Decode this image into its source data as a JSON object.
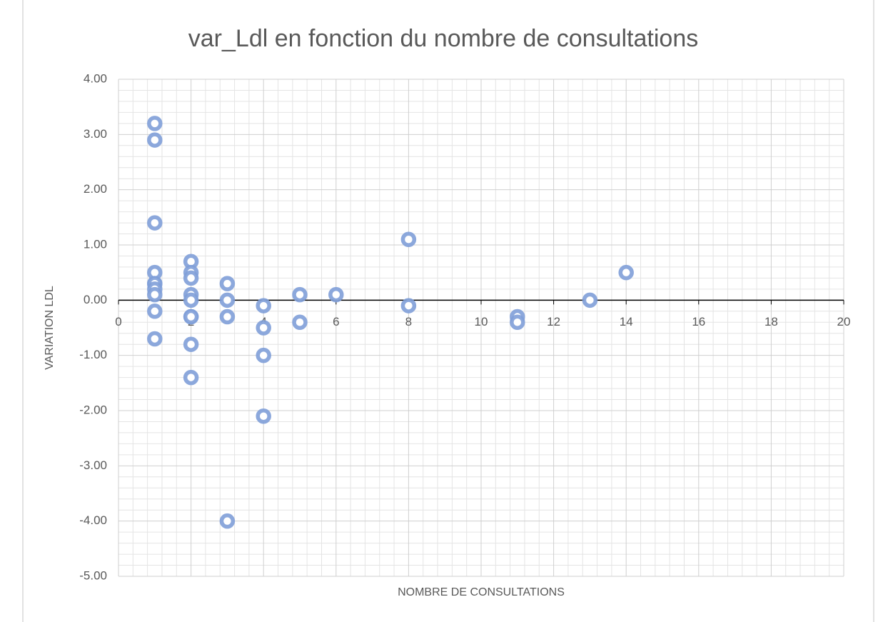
{
  "chart_data": {
    "type": "scatter",
    "title": "var_Ldl en fonction du nombre de consultations",
    "x_label": "NOMBRE DE CONSULTATIONS",
    "y_label": "VARIATION LDL",
    "series": [
      {
        "color": "#7f9ed8",
        "x": [
          1,
          1,
          1,
          1,
          1,
          1,
          1,
          1,
          1,
          1,
          2,
          2,
          2,
          2,
          2,
          2,
          2,
          2,
          2,
          3,
          3,
          3,
          3,
          4,
          4,
          4,
          4,
          5,
          5,
          6,
          8,
          8,
          11,
          11,
          13,
          14
        ],
        "values": [
          3.2,
          2.9,
          1.4,
          0.5,
          0.3,
          0.3,
          0.2,
          0.1,
          -0.2,
          -0.7,
          0.7,
          0.5,
          0.4,
          0.1,
          0.0,
          -0.3,
          -0.3,
          -0.8,
          -1.4,
          0.3,
          0.0,
          -0.3,
          -4.0,
          -0.1,
          -0.5,
          -1.0,
          -2.1,
          0.1,
          -0.4,
          0.1,
          1.1,
          -0.1,
          -0.3,
          -0.4,
          0.0,
          0.5
        ]
      }
    ],
    "xlim": [
      0,
      20
    ],
    "xticks": [
      0,
      2,
      4,
      6,
      8,
      10,
      12,
      14,
      16,
      18,
      20
    ],
    "ylim": [
      -5,
      4
    ],
    "yticks": [
      {
        "value": -5,
        "label": "-5.00"
      },
      {
        "value": -4,
        "label": "-4.00"
      },
      {
        "value": -3,
        "label": "-3.00"
      },
      {
        "value": -2,
        "label": "-2.00"
      },
      {
        "value": -1,
        "label": "-1.00"
      },
      {
        "value": 0,
        "label": "0.00"
      },
      {
        "value": 1,
        "label": "1.00"
      },
      {
        "value": 2,
        "label": "2.00"
      },
      {
        "value": 3,
        "label": "3.00"
      },
      {
        "value": 4,
        "label": "4.00"
      }
    ],
    "grid": true,
    "minor_grid": true
  }
}
